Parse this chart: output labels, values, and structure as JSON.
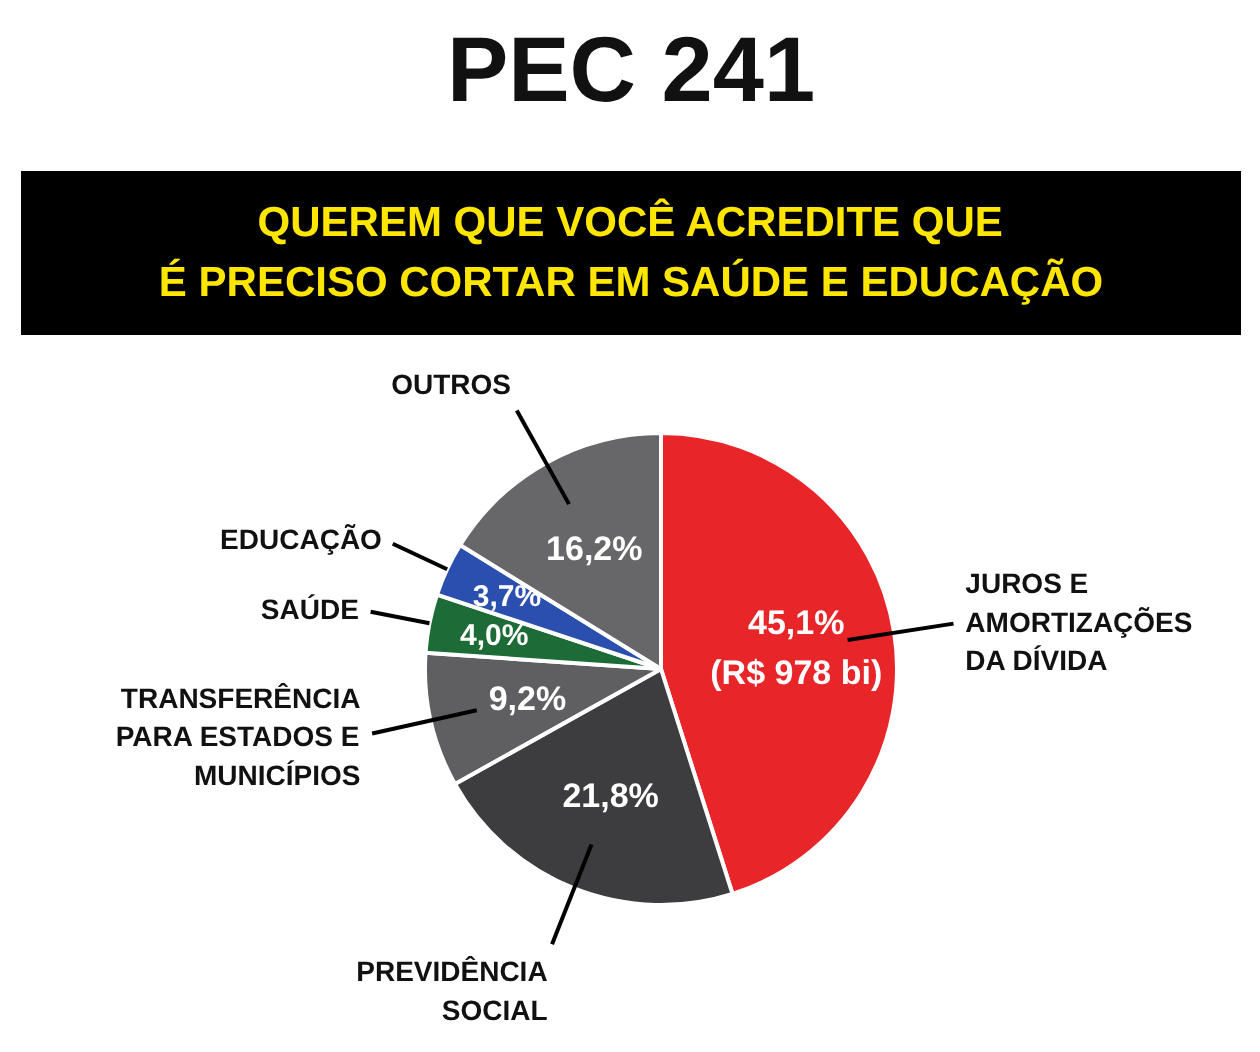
{
  "chart_data": {
    "type": "pie",
    "title": "PEC 241",
    "subtitle": "QUEREM QUE VOCÊ ACREDITE QUE\nÉ PRECISO CORTAR EM SAÚDE E EDUCAÇÃO",
    "categories": [
      "JUROS E\nAMORTIZAÇÕES\nDA DÍVIDA",
      "PREVIDÊNCIA\nSOCIAL",
      "TRANSFERÊNCIA\nPARA ESTADOS E\nMUNICÍPIOS",
      "SAÚDE",
      "EDUCAÇÃO",
      "OUTROS"
    ],
    "values": [
      45.1,
      21.8,
      9.2,
      4.0,
      3.7,
      16.2
    ],
    "colors": [
      "#e8262a",
      "#3d3d3f",
      "#5f5f61",
      "#1d6b36",
      "#2b4fae",
      "#67676a"
    ],
    "value_labels": [
      "45,1%\n(R$ 978 bi)",
      "21,8%",
      "9,2%",
      "4,0%",
      "3,7%",
      "16,2%"
    ]
  }
}
